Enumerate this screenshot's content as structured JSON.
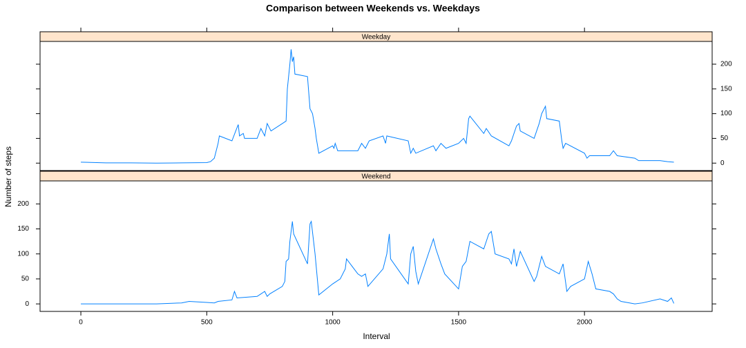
{
  "chart_data": {
    "type": "line",
    "title": "Comparison between Weekends vs. Weekdays",
    "xlabel": "Interval",
    "ylabel": "Number of steps",
    "xlim": [
      -162,
      2507
    ],
    "ylim": [
      -15,
      246
    ],
    "xticks": [
      0,
      500,
      1000,
      1500,
      2000
    ],
    "yticks": [
      0,
      50,
      100,
      150,
      200
    ],
    "color": "#0080ff",
    "strip_color": "#ffe5cc",
    "series": [
      {
        "name": "Weekday",
        "x": [
          0,
          100,
          200,
          300,
          400,
          500,
          515,
          530,
          545,
          550,
          600,
          615,
          625,
          630,
          645,
          650,
          700,
          715,
          730,
          740,
          755,
          800,
          815,
          820,
          830,
          835,
          840,
          845,
          850,
          900,
          910,
          920,
          930,
          935,
          945,
          1000,
          1005,
          1010,
          1020,
          1100,
          1115,
          1130,
          1145,
          1200,
          1210,
          1215,
          1300,
          1310,
          1320,
          1330,
          1400,
          1410,
          1430,
          1450,
          1500,
          1520,
          1530,
          1540,
          1545,
          1600,
          1610,
          1630,
          1700,
          1710,
          1720,
          1730,
          1740,
          1745,
          1800,
          1820,
          1830,
          1845,
          1850,
          1900,
          1910,
          1915,
          1925,
          2000,
          2010,
          2020,
          2100,
          2115,
          2130,
          2200,
          2215,
          2300,
          2330,
          2355
        ],
        "values": [
          2,
          0.5,
          0.5,
          0,
          0.5,
          1,
          3,
          10,
          40,
          55,
          45,
          65,
          78,
          55,
          60,
          50,
          50,
          70,
          55,
          80,
          65,
          80,
          85,
          150,
          200,
          230,
          205,
          215,
          180,
          175,
          110,
          100,
          70,
          50,
          20,
          35,
          30,
          40,
          25,
          25,
          40,
          30,
          45,
          55,
          40,
          55,
          45,
          20,
          30,
          20,
          35,
          25,
          40,
          30,
          40,
          50,
          40,
          90,
          95,
          60,
          70,
          55,
          35,
          45,
          60,
          75,
          80,
          65,
          50,
          80,
          100,
          115,
          90,
          85,
          45,
          30,
          40,
          20,
          10,
          15,
          15,
          25,
          15,
          10,
          5,
          5,
          3,
          2
        ]
      },
      {
        "name": "Weekend",
        "x": [
          0,
          100,
          200,
          300,
          400,
          430,
          500,
          530,
          545,
          600,
          610,
          620,
          700,
          715,
          730,
          740,
          750,
          800,
          810,
          815,
          825,
          830,
          840,
          845,
          900,
          910,
          915,
          930,
          945,
          1000,
          1030,
          1050,
          1055,
          1100,
          1115,
          1130,
          1140,
          1200,
          1215,
          1225,
          1230,
          1300,
          1310,
          1320,
          1330,
          1340,
          1400,
          1410,
          1430,
          1445,
          1500,
          1515,
          1530,
          1545,
          1600,
          1620,
          1630,
          1645,
          1700,
          1710,
          1720,
          1730,
          1745,
          1800,
          1810,
          1830,
          1845,
          1900,
          1915,
          1930,
          1945,
          2000,
          2015,
          2030,
          2045,
          2100,
          2115,
          2130,
          2145,
          2200,
          2230,
          2300,
          2330,
          2345,
          2355
        ],
        "values": [
          0,
          0,
          0,
          0,
          2,
          5,
          3,
          2,
          5,
          8,
          25,
          12,
          15,
          20,
          25,
          15,
          20,
          35,
          45,
          85,
          90,
          125,
          165,
          140,
          80,
          160,
          165,
          100,
          18,
          40,
          50,
          70,
          90,
          60,
          55,
          60,
          35,
          70,
          100,
          140,
          90,
          40,
          100,
          115,
          65,
          40,
          130,
          110,
          80,
          60,
          30,
          75,
          85,
          125,
          110,
          140,
          145,
          100,
          90,
          80,
          110,
          75,
          105,
          45,
          55,
          95,
          75,
          60,
          80,
          25,
          35,
          50,
          85,
          60,
          30,
          25,
          20,
          10,
          5,
          0,
          2,
          10,
          5,
          12,
          1
        ]
      }
    ]
  }
}
